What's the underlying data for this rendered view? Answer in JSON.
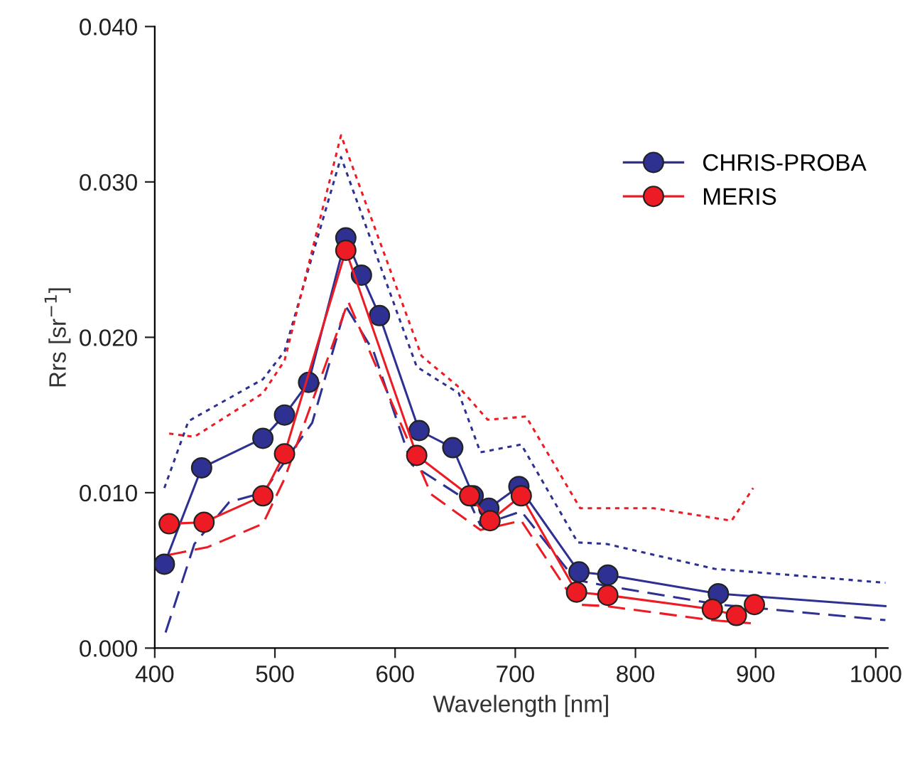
{
  "chart_data": {
    "type": "line",
    "xlabel": "Wavelength [nm]",
    "ylabel": "Rrs [sr$^{−1}$]",
    "xlim": [
      400,
      1010
    ],
    "xticks": [
      400,
      500,
      600,
      700,
      800,
      900,
      1000
    ],
    "ylim": [
      0,
      0.04
    ],
    "yticks": [
      {
        "value": 0,
        "label": "0.000"
      },
      {
        "value": 0.01,
        "label": "0.010"
      },
      {
        "value": 0.02,
        "label": "0.020"
      },
      {
        "value": 0.03,
        "label": "0.030"
      },
      {
        "value": 0.04,
        "label": "0.040"
      }
    ],
    "grid": false,
    "legend": "top right",
    "series": [
      {
        "name": "CHRIS-PROBA",
        "color": "#2e3192",
        "marker": "circle",
        "line_style": "solid",
        "x": [
          408,
          439,
          490,
          508,
          528,
          559,
          572,
          587,
          620,
          648,
          665,
          678,
          703,
          753,
          777,
          869
        ],
        "values": [
          0.0054,
          0.0116,
          0.0135,
          0.015,
          0.0171,
          0.0264,
          0.024,
          0.0214,
          0.014,
          0.0129,
          0.0098,
          0.009,
          0.0104,
          0.0049,
          0.0047,
          0.0035
        ]
      },
      {
        "name": "MERIS",
        "color": "#ed1c24",
        "marker": "circle",
        "line_style": "solid",
        "x": [
          412,
          441,
          490,
          508,
          559,
          618,
          662,
          679,
          705,
          751,
          777,
          864,
          884,
          899
        ],
        "values": [
          0.008,
          0.0081,
          0.0098,
          0.0125,
          0.0256,
          0.0124,
          0.0098,
          0.0082,
          0.0098,
          0.0036,
          0.0034,
          0.0025,
          0.0021,
          0.0028
        ]
      },
      {
        "color": "#2e3192",
        "marker": "none",
        "line_style": "solid",
        "x": [
          869,
          1008
        ],
        "values": [
          0.0035,
          0.0027
        ]
      },
      {
        "color": "#2e3192",
        "marker": "none",
        "line_style": "dotted",
        "x": [
          408,
          428,
          437,
          490,
          508,
          555,
          618,
          653,
          671,
          705,
          752,
          776,
          866,
          1008
        ],
        "values": [
          0.0103,
          0.0146,
          0.015,
          0.0173,
          0.0191,
          0.0316,
          0.0181,
          0.0164,
          0.0126,
          0.0131,
          0.0068,
          0.0067,
          0.0051,
          0.0042
        ]
      },
      {
        "color": "#ed1c24",
        "marker": "none",
        "line_style": "dotted",
        "x": [
          412,
          433,
          490,
          508,
          555,
          622,
          653,
          677,
          709,
          754,
          815,
          880,
          898
        ],
        "values": [
          0.0138,
          0.0136,
          0.0164,
          0.0185,
          0.033,
          0.0188,
          0.0168,
          0.0147,
          0.0149,
          0.009,
          0.009,
          0.0082,
          0.0103
        ]
      },
      {
        "color": "#2e3192",
        "marker": "none",
        "line_style": "dashed",
        "x": [
          409,
          433,
          462,
          490,
          531,
          559,
          582,
          614,
          662,
          671,
          705,
          750,
          776,
          870,
          1008
        ],
        "values": [
          0.001,
          0.0067,
          0.0094,
          0.01,
          0.0145,
          0.022,
          0.0191,
          0.0118,
          0.0094,
          0.0079,
          0.0088,
          0.0044,
          0.004,
          0.0028,
          0.0018
        ]
      },
      {
        "color": "#ed1c24",
        "marker": "none",
        "line_style": "dashed",
        "x": [
          412,
          444,
          490,
          508,
          561,
          630,
          671,
          705,
          751,
          776,
          863,
          896
        ],
        "values": [
          0.006,
          0.0065,
          0.008,
          0.0109,
          0.0223,
          0.0099,
          0.0076,
          0.0082,
          0.0028,
          0.0027,
          0.0018,
          0.0016
        ]
      }
    ]
  }
}
